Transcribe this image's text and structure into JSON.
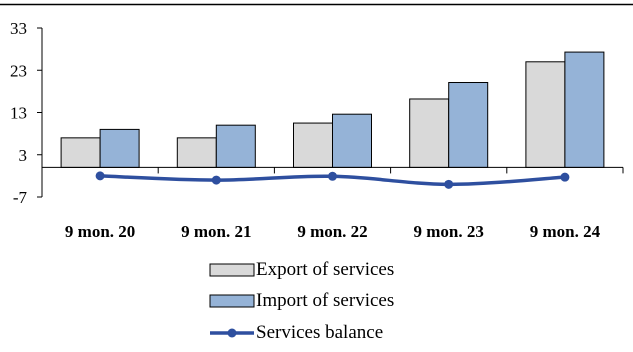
{
  "chart_data": {
    "type": "bar",
    "categories": [
      "9 mon. 20",
      "9 mon. 21",
      "9 mon. 22",
      "9 mon. 23",
      "9 mon. 24"
    ],
    "series": [
      {
        "name": "Export of services",
        "type": "bar",
        "color": "#d9d9d9",
        "values": [
          7.0,
          7.0,
          10.5,
          16.2,
          25.0
        ]
      },
      {
        "name": "Import of services",
        "type": "bar",
        "color": "#95b3d7",
        "values": [
          9.0,
          10.0,
          12.6,
          20.1,
          27.3
        ]
      },
      {
        "name": "Services balance",
        "type": "line",
        "color": "#2e4f9f",
        "values": [
          -2.0,
          -3.0,
          -2.1,
          -4.0,
          -2.3
        ]
      }
    ],
    "y_ticks": [
      "33",
      "23",
      "13",
      "3",
      "-7"
    ],
    "ylim": [
      -7,
      33
    ],
    "grid": false,
    "legend_position": "bottom"
  }
}
